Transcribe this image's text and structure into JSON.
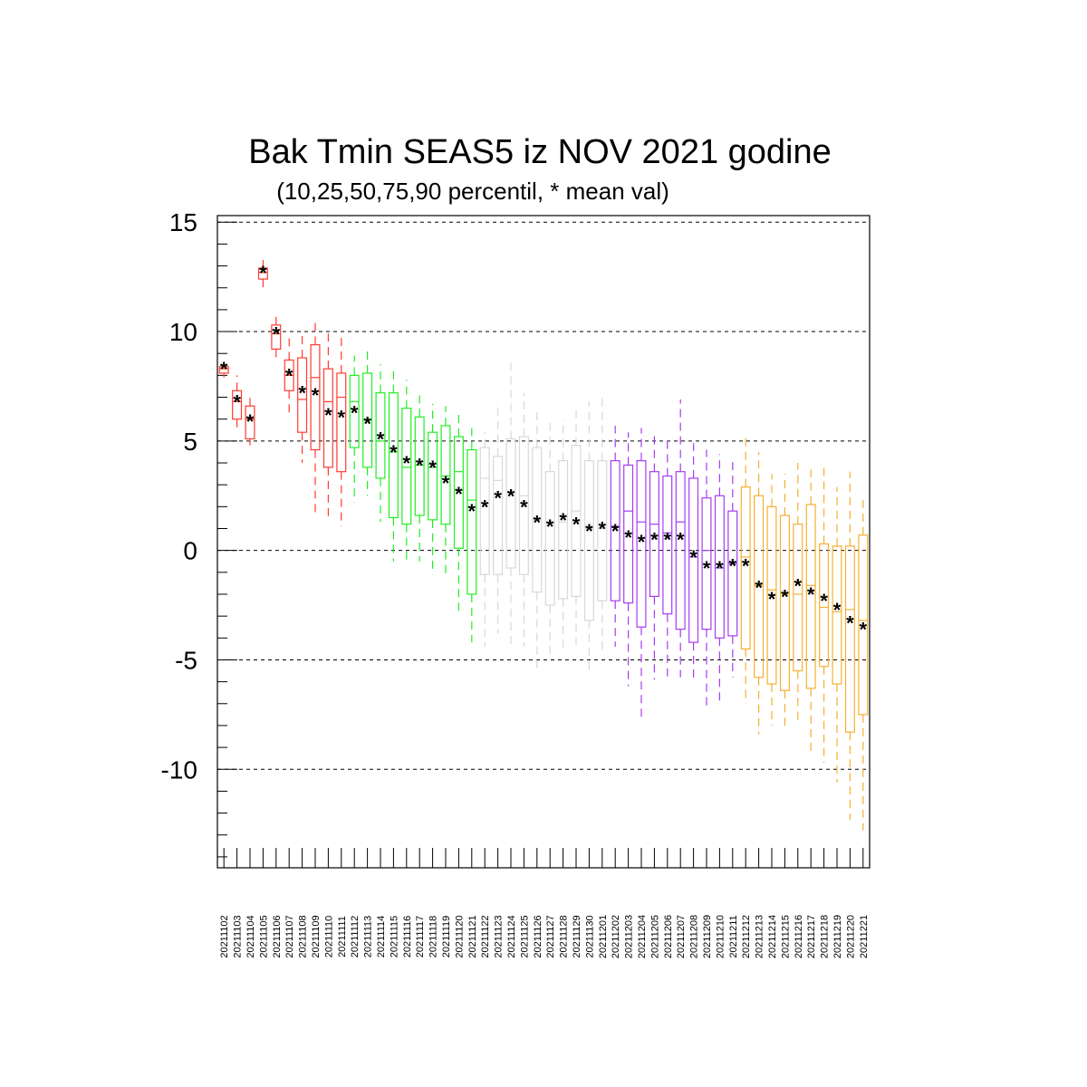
{
  "chart_data": {
    "type": "boxplot",
    "title": "Bak Tmin SEAS5 iz NOV 2021 godine",
    "subtitle": "(10,25,50,75,90 percentil, * mean val)",
    "ylim": [
      -14.5,
      15.3
    ],
    "yticks": [
      15,
      10,
      5,
      0,
      -5,
      -10
    ],
    "grid": true,
    "colors": {
      "red": "#ff3b30",
      "green": "#22ee22",
      "gray": "#d8d8d8",
      "purple": "#a63cf0",
      "orange": "#f4b030",
      "mean": "#000066"
    },
    "categories": [
      "20211102",
      "20211103",
      "20211104",
      "20211105",
      "20211106",
      "20211107",
      "20211108",
      "20211109",
      "20211110",
      "20211111",
      "20211112",
      "20211113",
      "20211114",
      "20211115",
      "20211116",
      "20211117",
      "20211118",
      "20211119",
      "20211120",
      "20211121",
      "20211122",
      "20211123",
      "20211124",
      "20211125",
      "20211126",
      "20211127",
      "20211128",
      "20211129",
      "20211130",
      "20211201",
      "20211202",
      "20211203",
      "20211204",
      "20211205",
      "20211206",
      "20211207",
      "20211208",
      "20211209",
      "20211210",
      "20211211",
      "20211212",
      "20211213",
      "20211214",
      "20211215",
      "20211216",
      "20211217",
      "20211218",
      "20211219",
      "20211220",
      "20211221"
    ],
    "series": [
      {
        "color": "red",
        "p10": 7.9,
        "p25": 8.1,
        "p50": 8.3,
        "p75": 8.4,
        "p90": 8.6,
        "mean": 8.3
      },
      {
        "color": "red",
        "p10": 5.6,
        "p25": 6.0,
        "p50": 6.8,
        "p75": 7.3,
        "p90": 8.0,
        "mean": 6.8
      },
      {
        "color": "red",
        "p10": 4.8,
        "p25": 5.1,
        "p50": 6.0,
        "p75": 6.6,
        "p90": 7.0,
        "mean": 5.9
      },
      {
        "color": "red",
        "p10": 11.9,
        "p25": 12.4,
        "p50": 12.7,
        "p75": 12.9,
        "p90": 13.3,
        "mean": 12.7
      },
      {
        "color": "red",
        "p10": 8.7,
        "p25": 9.2,
        "p50": 9.9,
        "p75": 10.3,
        "p90": 10.9,
        "mean": 9.9
      },
      {
        "color": "red",
        "p10": 6.1,
        "p25": 7.3,
        "p50": 8.0,
        "p75": 8.7,
        "p90": 9.8,
        "mean": 8.0
      },
      {
        "color": "red",
        "p10": 4.0,
        "p25": 5.4,
        "p50": 6.9,
        "p75": 8.8,
        "p90": 10.0,
        "mean": 7.2
      },
      {
        "color": "red",
        "p10": 1.5,
        "p25": 4.6,
        "p50": 7.9,
        "p75": 9.4,
        "p90": 10.4,
        "mean": 7.1
      },
      {
        "color": "red",
        "p10": 1.5,
        "p25": 3.8,
        "p50": 6.8,
        "p75": 8.3,
        "p90": 10.0,
        "mean": 6.2
      },
      {
        "color": "red",
        "p10": 1.1,
        "p25": 3.6,
        "p50": 7.0,
        "p75": 8.1,
        "p90": 9.8,
        "mean": 6.1
      },
      {
        "color": "green",
        "p10": 2.2,
        "p25": 4.7,
        "p50": 6.8,
        "p75": 8.0,
        "p90": 8.9,
        "mean": 6.3
      },
      {
        "color": "green",
        "p10": 2.5,
        "p25": 3.8,
        "p50": 6.0,
        "p75": 8.1,
        "p90": 9.2,
        "mean": 5.8
      },
      {
        "color": "green",
        "p10": 1.3,
        "p25": 3.3,
        "p50": 5.0,
        "p75": 7.2,
        "p90": 8.5,
        "mean": 5.1
      },
      {
        "color": "green",
        "p10": -0.5,
        "p25": 1.5,
        "p50": 4.5,
        "p75": 7.2,
        "p90": 8.4,
        "mean": 4.5
      },
      {
        "color": "green",
        "p10": -0.6,
        "p25": 1.2,
        "p50": 3.8,
        "p75": 6.5,
        "p90": 7.8,
        "mean": 4.0
      },
      {
        "color": "green",
        "p10": -0.5,
        "p25": 1.6,
        "p50": 3.9,
        "p75": 6.1,
        "p90": 7.3,
        "mean": 3.9
      },
      {
        "color": "green",
        "p10": -1.1,
        "p25": 1.4,
        "p50": 3.8,
        "p75": 5.4,
        "p90": 6.7,
        "mean": 3.8
      },
      {
        "color": "green",
        "p10": -1.1,
        "p25": 1.2,
        "p50": 3.4,
        "p75": 5.7,
        "p90": 6.6,
        "mean": 3.1
      },
      {
        "color": "green",
        "p10": -3.0,
        "p25": 0.1,
        "p50": 3.6,
        "p75": 5.2,
        "p90": 6.2,
        "mean": 2.6
      },
      {
        "color": "green",
        "p10": -4.2,
        "p25": -2.0,
        "p50": 2.3,
        "p75": 4.6,
        "p90": 5.8,
        "mean": 1.8
      },
      {
        "color": "gray",
        "p10": -4.4,
        "p25": -1.1,
        "p50": 3.3,
        "p75": 4.7,
        "p90": 5.4,
        "mean": 2.0
      },
      {
        "color": "gray",
        "p10": -3.8,
        "p25": -1.1,
        "p50": 3.2,
        "p75": 4.3,
        "p90": 6.8,
        "mean": 2.4
      },
      {
        "color": "gray",
        "p10": -4.4,
        "p25": -0.8,
        "p50": 2.7,
        "p75": 5.1,
        "p90": 8.6,
        "mean": 2.5
      },
      {
        "color": "gray",
        "p10": -4.4,
        "p25": -1.1,
        "p50": 2.5,
        "p75": 5.2,
        "p90": 7.2,
        "mean": 2.0
      },
      {
        "color": "gray",
        "p10": -5.4,
        "p25": -1.9,
        "p50": 1.4,
        "p75": 4.7,
        "p90": 6.5,
        "mean": 1.3
      },
      {
        "color": "gray",
        "p10": -5.0,
        "p25": -2.5,
        "p50": 1.3,
        "p75": 3.6,
        "p90": 6.0,
        "mean": 1.1
      },
      {
        "color": "gray",
        "p10": -4.5,
        "p25": -2.2,
        "p50": 1.3,
        "p75": 4.1,
        "p90": 6.0,
        "mean": 1.4
      },
      {
        "color": "gray",
        "p10": -4.6,
        "p25": -2.1,
        "p50": 1.8,
        "p75": 4.8,
        "p90": 6.5,
        "mean": 1.2
      },
      {
        "color": "gray",
        "p10": -5.7,
        "p25": -3.2,
        "p50": 1.0,
        "p75": 4.1,
        "p90": 6.8,
        "mean": 0.9
      },
      {
        "color": "gray",
        "p10": -4.7,
        "p25": -2.3,
        "p50": 1.0,
        "p75": 4.1,
        "p90": 7.0,
        "mean": 1.0
      },
      {
        "color": "purple",
        "p10": -4.4,
        "p25": -2.3,
        "p50": 1.1,
        "p75": 4.1,
        "p90": 5.7,
        "mean": 0.9
      },
      {
        "color": "purple",
        "p10": -6.2,
        "p25": -2.4,
        "p50": 1.8,
        "p75": 3.9,
        "p90": 5.4,
        "mean": 0.6
      },
      {
        "color": "purple",
        "p10": -7.7,
        "p25": -3.5,
        "p50": 1.3,
        "p75": 4.1,
        "p90": 5.6,
        "mean": 0.4
      },
      {
        "color": "purple",
        "p10": -5.9,
        "p25": -2.1,
        "p50": 1.2,
        "p75": 3.6,
        "p90": 5.3,
        "mean": 0.5
      },
      {
        "color": "purple",
        "p10": -5.8,
        "p25": -2.9,
        "p50": 0.8,
        "p75": 3.4,
        "p90": 5.2,
        "mean": 0.5
      },
      {
        "color": "purple",
        "p10": -5.8,
        "p25": -3.6,
        "p50": 1.3,
        "p75": 3.6,
        "p90": 6.9,
        "mean": 0.5
      },
      {
        "color": "purple",
        "p10": -5.9,
        "p25": -4.2,
        "p50": -0.3,
        "p75": 3.3,
        "p90": 4.9,
        "mean": -0.3
      },
      {
        "color": "purple",
        "p10": -7.2,
        "p25": -3.6,
        "p50": 0.0,
        "p75": 2.4,
        "p90": 4.6,
        "mean": -0.8
      },
      {
        "color": "purple",
        "p10": -7.0,
        "p25": -4.0,
        "p50": -0.8,
        "p75": 2.5,
        "p90": 4.4,
        "mean": -0.8
      },
      {
        "color": "purple",
        "p10": -5.8,
        "p25": -3.9,
        "p50": -0.6,
        "p75": 1.8,
        "p90": 4.1,
        "mean": -0.7
      },
      {
        "color": "orange",
        "p10": -7.0,
        "p25": -4.5,
        "p50": -0.3,
        "p75": 2.9,
        "p90": 5.2,
        "mean": -0.7
      },
      {
        "color": "orange",
        "p10": -8.4,
        "p25": -5.8,
        "p50": -1.6,
        "p75": 2.5,
        "p90": 4.5,
        "mean": -1.7
      },
      {
        "color": "orange",
        "p10": -8.0,
        "p25": -6.1,
        "p50": -1.8,
        "p75": 2.0,
        "p90": 3.5,
        "mean": -2.2
      },
      {
        "color": "orange",
        "p10": -8.2,
        "p25": -6.4,
        "p50": -2.0,
        "p75": 1.6,
        "p90": 3.5,
        "mean": -2.1
      },
      {
        "color": "orange",
        "p10": -7.8,
        "p25": -5.5,
        "p50": -2.0,
        "p75": 1.2,
        "p90": 4.0,
        "mean": -1.6
      },
      {
        "color": "orange",
        "p10": -9.2,
        "p25": -6.3,
        "p50": -1.6,
        "p75": 2.1,
        "p90": 3.7,
        "mean": -2.0
      },
      {
        "color": "orange",
        "p10": -9.7,
        "p25": -5.3,
        "p50": -2.6,
        "p75": 0.3,
        "p90": 3.8,
        "mean": -2.3
      },
      {
        "color": "orange",
        "p10": -10.6,
        "p25": -6.1,
        "p50": -2.8,
        "p75": 0.2,
        "p90": 2.9,
        "mean": -2.7
      },
      {
        "color": "orange",
        "p10": -12.3,
        "p25": -8.3,
        "p50": -2.7,
        "p75": 0.2,
        "p90": 3.6,
        "mean": -3.3
      },
      {
        "color": "orange",
        "p10": -12.8,
        "p25": -7.5,
        "p50": -3.2,
        "p75": 0.7,
        "p90": 2.3,
        "mean": -3.6
      }
    ]
  }
}
